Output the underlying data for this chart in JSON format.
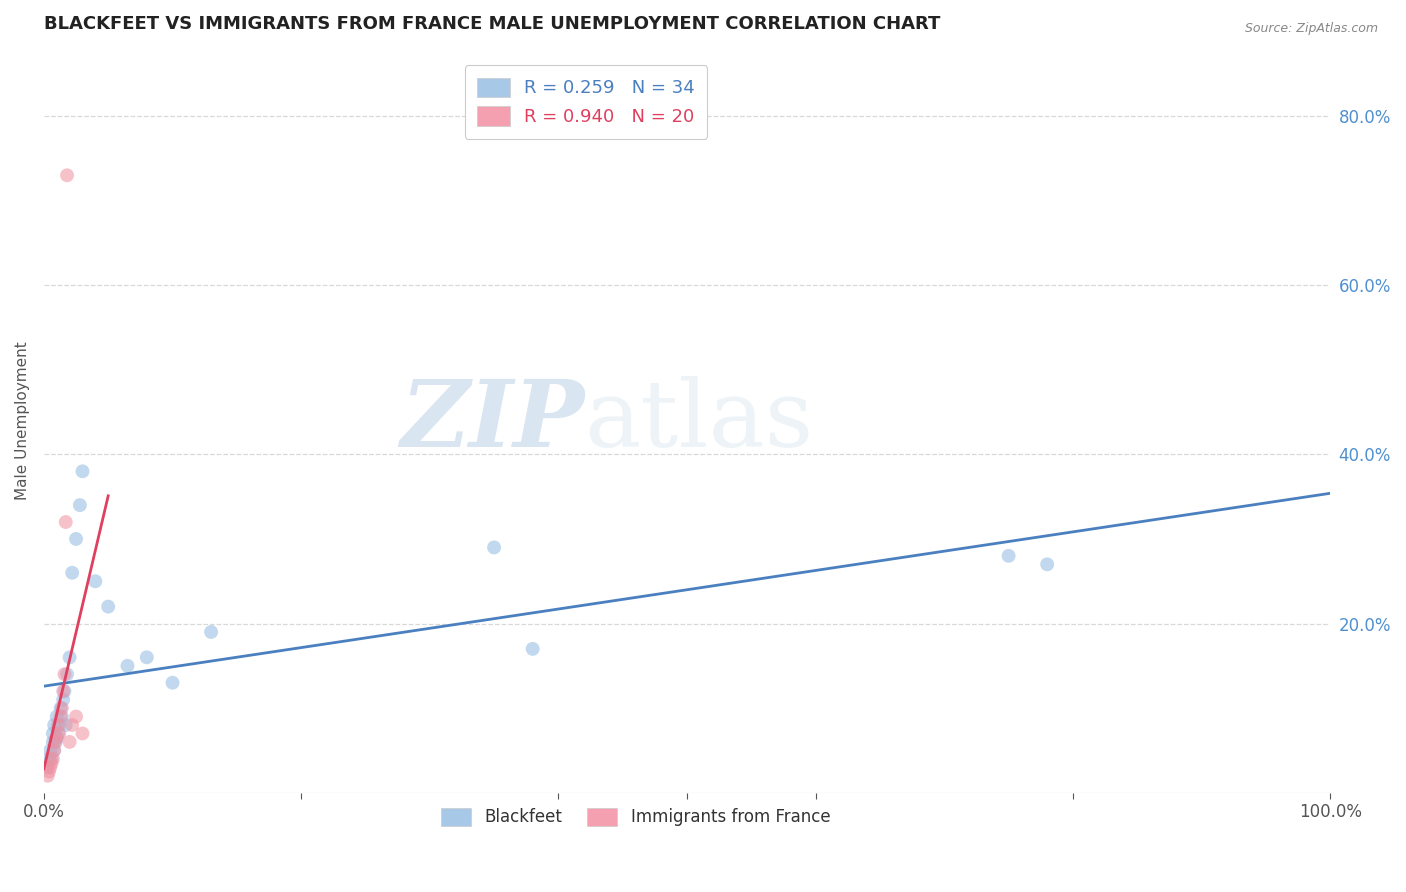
{
  "title": "BLACKFEET VS IMMIGRANTS FROM FRANCE MALE UNEMPLOYMENT CORRELATION CHART",
  "source": "Source: ZipAtlas.com",
  "ylabel": "Male Unemployment",
  "xlim": [
    0.0,
    1.0
  ],
  "ylim": [
    0.0,
    0.88
  ],
  "y_tick_positions": [
    0.2,
    0.4,
    0.6,
    0.8
  ],
  "watermark_zip": "ZIP",
  "watermark_atlas": "atlas",
  "legend_top": [
    {
      "label": "R = 0.259   N = 34",
      "face_color": "#a8c8e8"
    },
    {
      "label": "R = 0.940   N = 20",
      "face_color": "#f4a0b0"
    }
  ],
  "legend_bottom": [
    {
      "label": "Blackfeet",
      "face_color": "#a8c8e8"
    },
    {
      "label": "Immigrants from France",
      "face_color": "#f4a0b0"
    }
  ],
  "blackfeet_x": [
    0.003,
    0.004,
    0.005,
    0.006,
    0.007,
    0.007,
    0.008,
    0.008,
    0.009,
    0.01,
    0.01,
    0.011,
    0.012,
    0.013,
    0.014,
    0.015,
    0.016,
    0.017,
    0.018,
    0.02,
    0.022,
    0.025,
    0.028,
    0.03,
    0.04,
    0.05,
    0.065,
    0.08,
    0.1,
    0.13,
    0.35,
    0.38,
    0.75,
    0.78
  ],
  "blackfeet_y": [
    0.03,
    0.04,
    0.05,
    0.04,
    0.06,
    0.07,
    0.05,
    0.08,
    0.06,
    0.065,
    0.09,
    0.07,
    0.08,
    0.1,
    0.09,
    0.11,
    0.12,
    0.08,
    0.14,
    0.16,
    0.26,
    0.3,
    0.34,
    0.38,
    0.25,
    0.22,
    0.15,
    0.16,
    0.13,
    0.19,
    0.29,
    0.17,
    0.28,
    0.27
  ],
  "france_x": [
    0.003,
    0.004,
    0.005,
    0.006,
    0.007,
    0.008,
    0.009,
    0.01,
    0.011,
    0.012,
    0.013,
    0.014,
    0.015,
    0.016,
    0.017,
    0.018,
    0.02,
    0.022,
    0.025,
    0.03
  ],
  "france_y": [
    0.02,
    0.025,
    0.03,
    0.035,
    0.04,
    0.05,
    0.06,
    0.065,
    0.08,
    0.07,
    0.09,
    0.1,
    0.12,
    0.14,
    0.32,
    0.73,
    0.06,
    0.08,
    0.09,
    0.07
  ],
  "blue_scatter_color": "#90b8e0",
  "pink_scatter_color": "#f090a0",
  "blue_line_color": "#4a7fc0",
  "pink_line_color": "#e04060",
  "pink_trendline_dashed_color": "#c8c8c8",
  "grid_color": "#d8d8d8",
  "background_color": "#ffffff",
  "title_color": "#222222",
  "axis_label_color": "#555555",
  "right_axis_color": "#5090d0",
  "x_tick_color": "#555555",
  "marker_size": 100,
  "marker_alpha": 0.55
}
